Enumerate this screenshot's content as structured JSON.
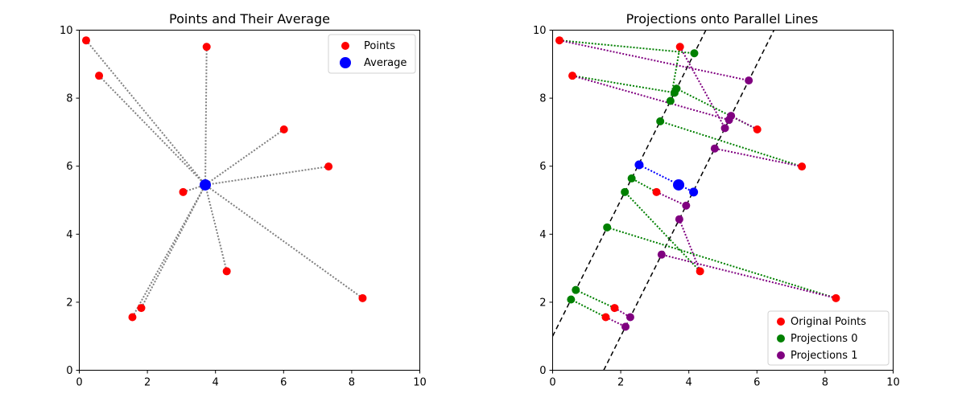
{
  "chart_data": [
    {
      "type": "scatter",
      "title": "Points and Their Average",
      "xlim": [
        0,
        10
      ],
      "ylim": [
        0,
        10
      ],
      "xticks": [
        "0",
        "2",
        "4",
        "6",
        "8",
        "10"
      ],
      "yticks": [
        "0",
        "2",
        "4",
        "6",
        "8",
        "10"
      ],
      "grid": false,
      "legend_position": "top-right",
      "legend": [
        {
          "label": "Points",
          "color": "#ff0000"
        },
        {
          "label": "Average",
          "color": "#0000ff"
        }
      ],
      "points": [
        {
          "x": 0.2,
          "y": 9.7
        },
        {
          "x": 0.58,
          "y": 8.66
        },
        {
          "x": 3.74,
          "y": 9.51
        },
        {
          "x": 6.01,
          "y": 7.08
        },
        {
          "x": 7.32,
          "y": 5.99
        },
        {
          "x": 3.05,
          "y": 5.24
        },
        {
          "x": 4.33,
          "y": 2.91
        },
        {
          "x": 8.32,
          "y": 2.12
        },
        {
          "x": 1.82,
          "y": 1.83
        },
        {
          "x": 1.56,
          "y": 1.56
        }
      ],
      "average": {
        "x": 3.7,
        "y": 5.45
      }
    },
    {
      "type": "scatter",
      "title": "Projections onto Parallel Lines",
      "xlim": [
        0,
        10
      ],
      "ylim": [
        0,
        10
      ],
      "xticks": [
        "0",
        "2",
        "4",
        "6",
        "8",
        "10"
      ],
      "yticks": [
        "0",
        "2",
        "4",
        "6",
        "8",
        "10"
      ],
      "grid": false,
      "legend_position": "bottom-right",
      "legend": [
        {
          "label": "Original Points",
          "color": "#ff0000"
        },
        {
          "label": "Projections 0",
          "color": "#008000"
        },
        {
          "label": "Projections 1",
          "color": "#800080"
        }
      ],
      "lines": [
        {
          "slope": 2.0,
          "intercept": 1.0
        },
        {
          "slope": 2.0,
          "intercept": -3.0
        }
      ],
      "original_points": [
        {
          "x": 0.2,
          "y": 9.7
        },
        {
          "x": 0.58,
          "y": 8.66
        },
        {
          "x": 3.74,
          "y": 9.51
        },
        {
          "x": 6.01,
          "y": 7.08
        },
        {
          "x": 7.32,
          "y": 5.99
        },
        {
          "x": 3.05,
          "y": 5.24
        },
        {
          "x": 4.33,
          "y": 2.91
        },
        {
          "x": 8.32,
          "y": 2.12
        },
        {
          "x": 1.82,
          "y": 1.83
        },
        {
          "x": 1.56,
          "y": 1.56
        }
      ],
      "projections_0": [
        {
          "x": 4.16,
          "y": 9.32
        },
        {
          "x": 3.58,
          "y": 8.16
        },
        {
          "x": 3.46,
          "y": 7.92
        },
        {
          "x": 3.64,
          "y": 8.28
        },
        {
          "x": 3.16,
          "y": 7.32
        },
        {
          "x": 2.32,
          "y": 5.64
        },
        {
          "x": 2.12,
          "y": 5.24
        },
        {
          "x": 1.6,
          "y": 4.2
        },
        {
          "x": 0.68,
          "y": 2.36
        },
        {
          "x": 0.54,
          "y": 2.08
        }
      ],
      "projections_1": [
        {
          "x": 5.76,
          "y": 8.52
        },
        {
          "x": 5.18,
          "y": 7.36
        },
        {
          "x": 5.06,
          "y": 7.12
        },
        {
          "x": 5.24,
          "y": 7.48
        },
        {
          "x": 4.76,
          "y": 6.52
        },
        {
          "x": 3.92,
          "y": 4.84
        },
        {
          "x": 3.72,
          "y": 4.44
        },
        {
          "x": 3.2,
          "y": 3.4
        },
        {
          "x": 2.28,
          "y": 1.56
        },
        {
          "x": 2.14,
          "y": 1.28
        }
      ],
      "blue_points": [
        {
          "x": 2.54,
          "y": 6.04
        },
        {
          "x": 4.14,
          "y": 5.24
        }
      ],
      "average": {
        "x": 3.7,
        "y": 5.45
      }
    }
  ]
}
